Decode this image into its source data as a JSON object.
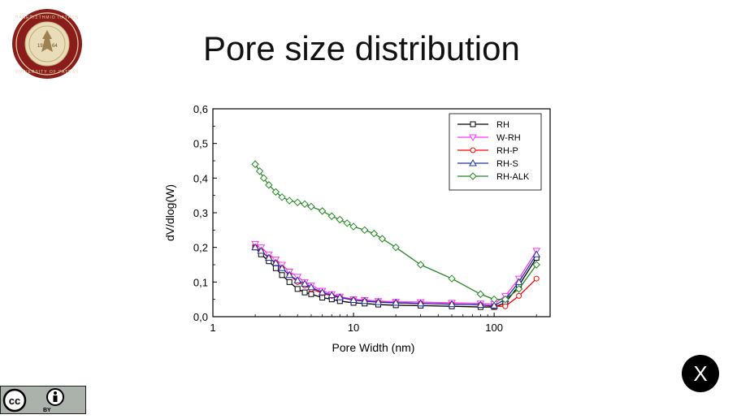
{
  "slide": {
    "title": "Pore size distribution",
    "close_label": "X",
    "logo_seal_text": "UNIVERSITY OF PATRAS 1964",
    "license": {
      "label": "BY",
      "cc_text": "cc"
    }
  },
  "chart_data": {
    "type": "line",
    "xlabel": "Pore Width (nm)",
    "ylabel": "dV/dlog(W)",
    "xscale": "log",
    "xlim": [
      1,
      250
    ],
    "ylim": [
      0,
      0.6
    ],
    "xticks": [
      1,
      10,
      100
    ],
    "xtick_labels": [
      "1",
      "10",
      "100"
    ],
    "yticks": [
      0,
      0.1,
      0.2,
      0.3,
      0.4,
      0.5,
      0.6
    ],
    "ytick_labels": [
      "0,0",
      "0,1",
      "0,2",
      "0,3",
      "0,4",
      "0,5",
      "0,6"
    ],
    "legend_position": "top-right",
    "series": [
      {
        "name": "RH",
        "color": "#000000",
        "marker": "square",
        "x": [
          2,
          2.2,
          2.5,
          2.8,
          3.1,
          3.5,
          4,
          4.5,
          5,
          6,
          7,
          8,
          10,
          12,
          15,
          20,
          30,
          50,
          80,
          100,
          120,
          150,
          200
        ],
        "y": [
          0.2,
          0.18,
          0.16,
          0.14,
          0.12,
          0.1,
          0.08,
          0.07,
          0.065,
          0.055,
          0.05,
          0.045,
          0.04,
          0.038,
          0.035,
          0.033,
          0.032,
          0.03,
          0.028,
          0.028,
          0.04,
          0.09,
          0.17
        ]
      },
      {
        "name": "W-RH",
        "color": "#ff33ff",
        "marker": "triangle-down",
        "x": [
          2,
          2.2,
          2.5,
          2.8,
          3.1,
          3.5,
          4,
          4.5,
          5,
          6,
          7,
          8,
          10,
          12,
          15,
          20,
          30,
          50,
          80,
          100,
          120,
          150,
          200
        ],
        "y": [
          0.21,
          0.2,
          0.18,
          0.165,
          0.15,
          0.13,
          0.115,
          0.1,
          0.09,
          0.075,
          0.065,
          0.058,
          0.05,
          0.048,
          0.045,
          0.043,
          0.042,
          0.04,
          0.038,
          0.037,
          0.06,
          0.11,
          0.19
        ]
      },
      {
        "name": "RH-P",
        "color": "#ff0000",
        "marker": "circle",
        "x": [
          2,
          2.2,
          2.5,
          2.8,
          3.1,
          3.5,
          4,
          4.5,
          5,
          6,
          7,
          8,
          10,
          12,
          15,
          20,
          30,
          50,
          80,
          100,
          120,
          150,
          200
        ],
        "y": [
          0.2,
          0.19,
          0.17,
          0.155,
          0.14,
          0.12,
          0.1,
          0.09,
          0.08,
          0.068,
          0.06,
          0.055,
          0.048,
          0.045,
          0.042,
          0.04,
          0.038,
          0.036,
          0.034,
          0.03,
          0.03,
          0.06,
          0.11
        ]
      },
      {
        "name": "RH-S",
        "color": "#2233aa",
        "marker": "triangle-up",
        "x": [
          2,
          2.2,
          2.5,
          2.8,
          3.1,
          3.5,
          4,
          4.5,
          5,
          6,
          7,
          8,
          10,
          12,
          15,
          20,
          30,
          50,
          80,
          100,
          120,
          150,
          200
        ],
        "y": [
          0.2,
          0.19,
          0.17,
          0.155,
          0.14,
          0.12,
          0.105,
          0.095,
          0.085,
          0.07,
          0.062,
          0.056,
          0.048,
          0.045,
          0.042,
          0.04,
          0.038,
          0.036,
          0.034,
          0.032,
          0.05,
          0.1,
          0.18
        ]
      },
      {
        "name": "RH-ALK",
        "color": "#228822",
        "marker": "diamond",
        "x": [
          2,
          2.15,
          2.3,
          2.5,
          2.8,
          3.1,
          3.5,
          4,
          4.5,
          5,
          6,
          7,
          8,
          9,
          10,
          12,
          14,
          16,
          20,
          30,
          50,
          80,
          100,
          120,
          150,
          200
        ],
        "y": [
          0.44,
          0.42,
          0.4,
          0.38,
          0.36,
          0.345,
          0.335,
          0.33,
          0.325,
          0.318,
          0.305,
          0.29,
          0.28,
          0.27,
          0.26,
          0.25,
          0.24,
          0.225,
          0.2,
          0.15,
          0.11,
          0.065,
          0.05,
          0.05,
          0.08,
          0.15
        ]
      }
    ]
  }
}
